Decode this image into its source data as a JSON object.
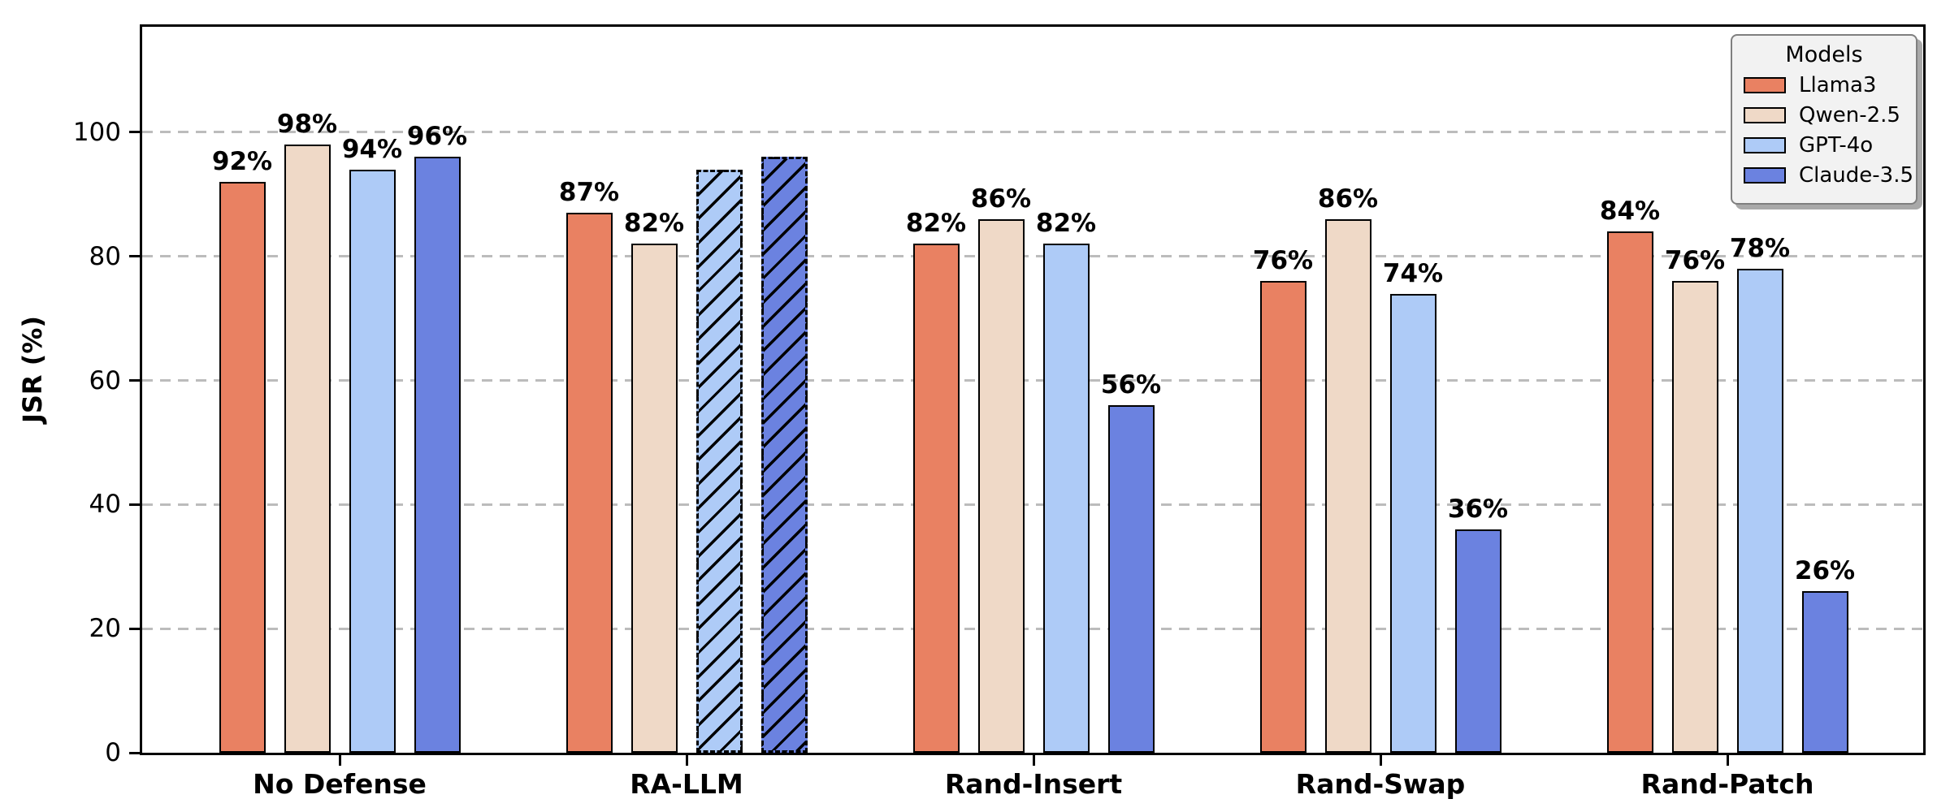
{
  "chart_data": {
    "type": "bar",
    "title": "",
    "xlabel": "",
    "ylabel": "JSR (%)",
    "categories": [
      "No Defense",
      "RA-LLM",
      "Rand-Insert",
      "Rand-Swap",
      "Rand-Patch"
    ],
    "series": [
      {
        "name": "Llama3",
        "color": "#E98162",
        "values": [
          92,
          87,
          82,
          76,
          84
        ],
        "labels": [
          "92%",
          "87%",
          "82%",
          "76%",
          "84%"
        ],
        "hatched": [
          false,
          false,
          false,
          false,
          false
        ]
      },
      {
        "name": "Qwen-2.5",
        "color": "#EFD9C7",
        "values": [
          98,
          82,
          86,
          86,
          76
        ],
        "labels": [
          "98%",
          "82%",
          "86%",
          "86%",
          "76%"
        ],
        "hatched": [
          false,
          false,
          false,
          false,
          false
        ]
      },
      {
        "name": "GPT-4o",
        "color": "#AECBF7",
        "values": [
          94,
          94,
          82,
          74,
          78
        ],
        "labels": [
          "94%",
          "",
          "82%",
          "74%",
          "78%"
        ],
        "hatched": [
          false,
          true,
          false,
          false,
          false
        ]
      },
      {
        "name": "Claude-3.5",
        "color": "#6B82E0",
        "values": [
          96,
          96,
          56,
          36,
          26
        ],
        "labels": [
          "96%",
          "",
          "56%",
          "36%",
          "26%"
        ],
        "hatched": [
          false,
          true,
          false,
          false,
          false
        ]
      }
    ],
    "ylim": [
      0,
      117
    ],
    "yticks": [
      0,
      20,
      40,
      60,
      80,
      100
    ],
    "grid": "horizontal-dashed",
    "grid_color": "#bcbcbc",
    "bar_edge_color": "#000000",
    "legend_title": "Models",
    "legend_position": "upper right"
  }
}
